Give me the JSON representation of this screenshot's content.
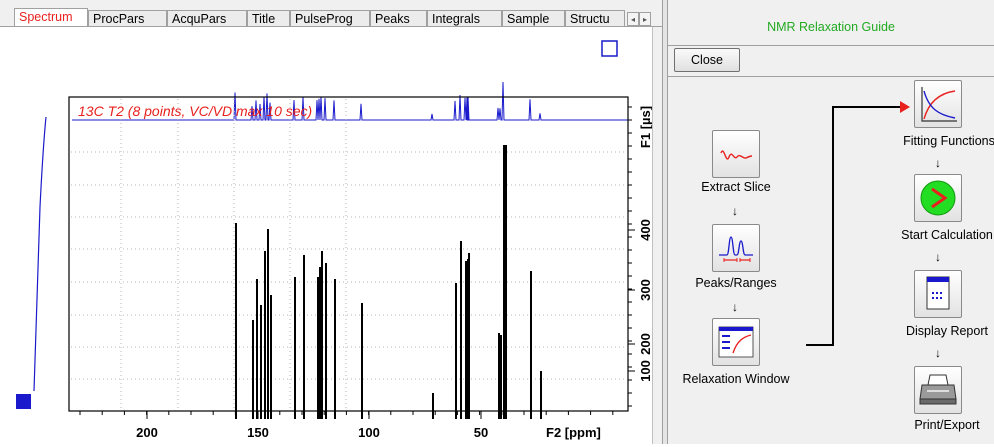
{
  "tabs": [
    {
      "label": "Spectrum",
      "active": true
    },
    {
      "label": "ProcPars"
    },
    {
      "label": "AcquPars"
    },
    {
      "label": "Title"
    },
    {
      "label": "PulseProg"
    },
    {
      "label": "Peaks"
    },
    {
      "label": "Integrals"
    },
    {
      "label": "Sample"
    },
    {
      "label": "Structu"
    }
  ],
  "spectrum": {
    "title": "13C T2 (8 points, VC/VD max 10 sec)",
    "x_axis": {
      "label": "F2 [ppm]",
      "ticks": [
        "200",
        "150",
        "100",
        "50"
      ]
    },
    "y_axis": {
      "label": "F1 [µs]",
      "ticks": [
        "400",
        "300",
        "200",
        "100"
      ]
    },
    "peak_color": "#000000",
    "projection_color": "#1a1acc",
    "title_color": "#e8211e"
  },
  "guide": {
    "title": "NMR Relaxation Guide",
    "close_label": "Close",
    "steps": [
      {
        "label": "Extract Slice",
        "icon": "extract-slice-icon"
      },
      {
        "label": "Peaks/Ranges",
        "icon": "peaks-ranges-icon"
      },
      {
        "label": "Relaxation Window",
        "icon": "relaxation-window-icon"
      },
      {
        "label": "Fitting Functions",
        "icon": "fitting-functions-icon"
      },
      {
        "label": "Start Calculation",
        "icon": "start-calculation-icon"
      },
      {
        "label": "Display Report",
        "icon": "display-report-icon"
      },
      {
        "label": "Print/Export",
        "icon": "printer-icon"
      }
    ],
    "arrow_color": "#e8211e"
  }
}
